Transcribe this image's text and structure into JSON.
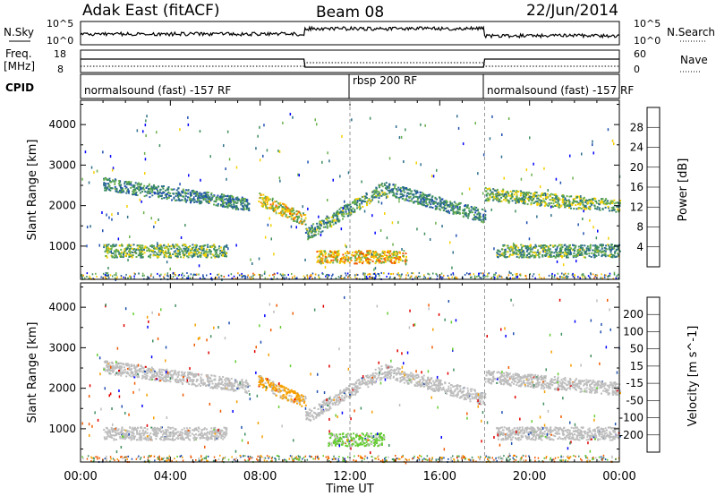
{
  "header": {
    "radar": "Adak East (fitACF)",
    "beam": "Beam 08",
    "date": "22/Jun/2014"
  },
  "strip": {
    "nsky_label": "N.Sky",
    "nsearch_label": "N.Search",
    "freq_label_line1": "Freq.",
    "freq_label_line2": "[MHz]",
    "nave_label": "Nave",
    "cpid_label": "CPID",
    "noise_ticks": [
      "10^5",
      "10^0"
    ],
    "freq_ticks": [
      "18",
      "8"
    ],
    "nave_ticks": [
      "60",
      "0"
    ],
    "cpid_segments": [
      {
        "text": "normalsound (fast) -157 RF",
        "start_hour": 0,
        "end_hour": 12
      },
      {
        "text": "rbsp 200 RF",
        "start_hour": 12,
        "end_hour": 18
      },
      {
        "text": "normalsound (fast) -157 RF",
        "start_hour": 18,
        "end_hour": 24
      }
    ]
  },
  "chart_data": [
    {
      "type": "heatmap",
      "title": "",
      "xlabel": "Time UT",
      "ylabel": "Slant Range [km]",
      "x_ticks": [
        "00:00",
        "04:00",
        "08:00",
        "12:00",
        "16:00",
        "20:00",
        "00:00"
      ],
      "y_ticks": [
        "1000",
        "2000",
        "3000",
        "4000"
      ],
      "xlim_hours": [
        0,
        24
      ],
      "ylim_km": [
        180,
        4600
      ],
      "colorbar": {
        "label": "Power [dB]",
        "ticks": [
          "28",
          "24",
          "20",
          "16",
          "12",
          "8",
          "4"
        ],
        "range": [
          0,
          30
        ],
        "colors": [
          "#0000ff",
          "#1f4fb0",
          "#2c6e8a",
          "#3e8e5e",
          "#6ab04c",
          "#f5d000",
          "#f59b00",
          "#f05a00",
          "#e00000"
        ]
      },
      "scatter_bands": [
        {
          "t_start": 1.0,
          "t_end": 7.5,
          "range_km_start": 2550,
          "range_km_end": 2050,
          "power_db": 10
        },
        {
          "t_start": 7.9,
          "t_end": 10.0,
          "range_km_start": 2200,
          "range_km_end": 1650,
          "power_db": 18
        },
        {
          "t_start": 10.0,
          "t_end": 13.5,
          "range_km_start": 1300,
          "range_km_end": 2450,
          "power_db": 12
        },
        {
          "t_start": 13.5,
          "t_end": 18.0,
          "range_km_start": 2450,
          "range_km_end": 1750,
          "power_db": 10
        },
        {
          "t_start": 18.0,
          "t_end": 24.0,
          "range_km_start": 2300,
          "range_km_end": 2000,
          "power_db": 14
        },
        {
          "t_start": 1.0,
          "t_end": 6.5,
          "range_km_start": 900,
          "range_km_end": 900,
          "power_db": 14
        },
        {
          "t_start": 10.5,
          "t_end": 14.5,
          "range_km_start": 750,
          "range_km_end": 750,
          "power_db": 20
        },
        {
          "t_start": 18.5,
          "t_end": 24.0,
          "range_km_start": 900,
          "range_km_end": 900,
          "power_db": 12
        }
      ]
    },
    {
      "type": "heatmap",
      "title": "",
      "xlabel": "Time UT",
      "ylabel": "Slant Range [km]",
      "x_ticks": [
        "00:00",
        "04:00",
        "08:00",
        "12:00",
        "16:00",
        "20:00",
        "00:00"
      ],
      "y_ticks": [
        "1000",
        "2000",
        "3000",
        "4000"
      ],
      "xlim_hours": [
        0,
        24
      ],
      "ylim_km": [
        180,
        4600
      ],
      "colorbar": {
        "label": "Velocity [m s^-1]",
        "ticks": [
          "200",
          "100",
          "50",
          "15",
          "-15",
          "-50",
          "-100",
          "-200"
        ],
        "range": [
          -250,
          250
        ],
        "colors": [
          "#e00000",
          "#f05a00",
          "#f5a000",
          "#bdbdbd",
          "#66cc33",
          "#3e8e5e",
          "#1f4fb0",
          "#0000ff"
        ]
      },
      "scatter_bands": [
        {
          "t_start": 1.0,
          "t_end": 7.5,
          "range_km_start": 2550,
          "range_km_end": 2050,
          "velocity": 0
        },
        {
          "t_start": 7.9,
          "t_end": 10.0,
          "range_km_start": 2200,
          "range_km_end": 1650,
          "velocity": -30
        },
        {
          "t_start": 10.0,
          "t_end": 13.5,
          "range_km_start": 1300,
          "range_km_end": 2450,
          "velocity": 0
        },
        {
          "t_start": 13.5,
          "t_end": 18.0,
          "range_km_start": 2450,
          "range_km_end": 1750,
          "velocity": 0
        },
        {
          "t_start": 18.0,
          "t_end": 24.0,
          "range_km_start": 2300,
          "range_km_end": 2000,
          "velocity": 0
        },
        {
          "t_start": 1.0,
          "t_end": 6.5,
          "range_km_start": 900,
          "range_km_end": 900,
          "velocity": 0
        },
        {
          "t_start": 11.0,
          "t_end": 13.5,
          "range_km_start": 750,
          "range_km_end": 750,
          "velocity": 30
        },
        {
          "t_start": 18.5,
          "t_end": 24.0,
          "range_km_start": 900,
          "range_km_end": 900,
          "velocity": 0
        }
      ]
    }
  ]
}
